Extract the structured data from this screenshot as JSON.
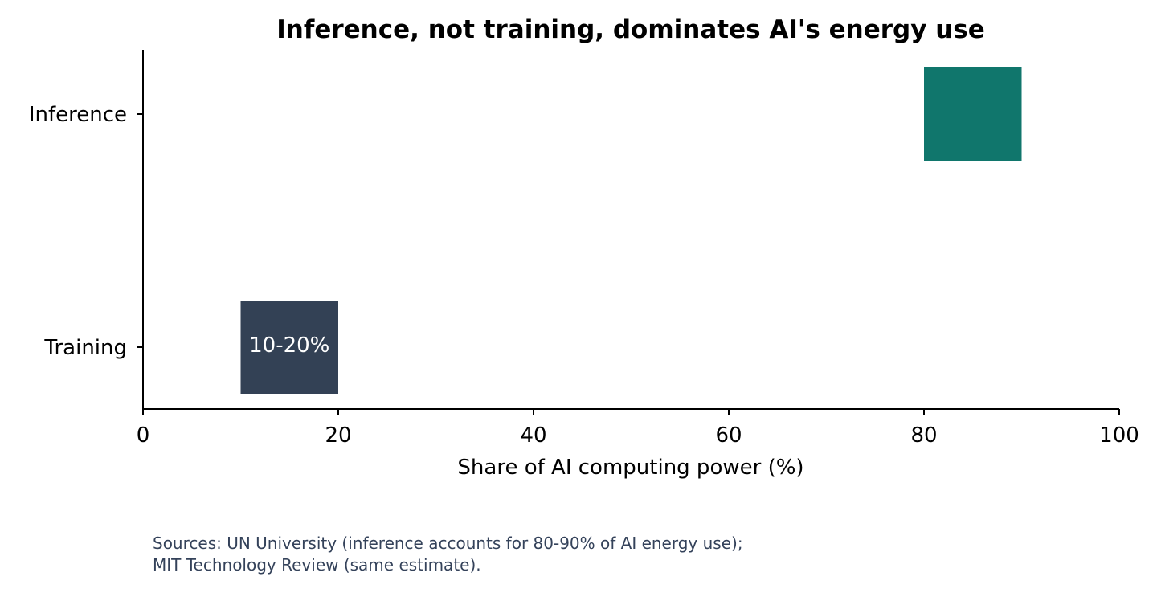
{
  "chart_data": {
    "type": "bar",
    "orientation": "horizontal",
    "title": "Inference, not training, dominates AI's energy use",
    "xlabel": "Share of AI computing power (%)",
    "ylabel": "",
    "xlim": [
      0,
      100
    ],
    "x_ticks": [
      0,
      20,
      40,
      60,
      80,
      100
    ],
    "x_tick_labels": [
      "0",
      "20",
      "40",
      "60",
      "80",
      "100"
    ],
    "categories": [
      "Inference",
      "Training"
    ],
    "ranges": [
      {
        "category": "Inference",
        "start": 80,
        "end": 90,
        "color": "#10766c",
        "label": ""
      },
      {
        "category": "Training",
        "start": 10,
        "end": 20,
        "color": "#334155",
        "label": "10-20%"
      }
    ],
    "grid": false
  },
  "sources": {
    "line1": "Sources: UN University (inference accounts for 80-90% of AI energy use);",
    "line2": "MIT Technology Review (same estimate)."
  }
}
